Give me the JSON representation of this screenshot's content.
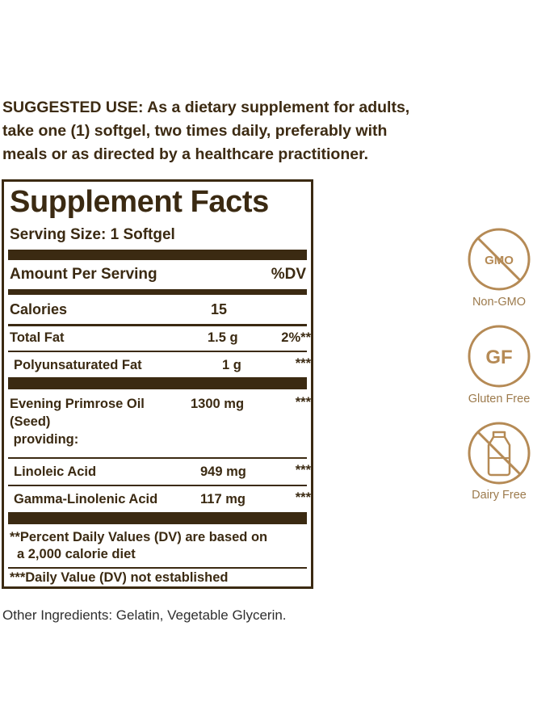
{
  "suggested_use": {
    "line1": "SUGGESTED USE: As a dietary supplement for adults,",
    "line2": "take one (1) softgel, two times daily, preferably with",
    "line3": "meals or as directed by a healthcare practitioner."
  },
  "facts": {
    "title": "Supplement Facts",
    "serving_size": "Serving Size: 1 Softgel",
    "amount_header": "Amount Per Serving",
    "dv_header": "%DV",
    "rows": [
      {
        "name": "Calories",
        "amount": "15",
        "dv": ""
      },
      {
        "name": "Total Fat",
        "amount": "1.5 g",
        "dv": "2%**"
      },
      {
        "name": "Polyunsaturated Fat",
        "amount": "1 g",
        "dv": "***"
      },
      {
        "name_lines": [
          "Evening Primrose Oil",
          "(Seed)",
          " providing:"
        ],
        "amount": "1300 mg",
        "dv": "***"
      },
      {
        "name": "Linoleic Acid",
        "amount": "949 mg",
        "dv": "***"
      },
      {
        "name": "Gamma-Linolenic Acid",
        "amount": "117 mg",
        "dv": "***"
      }
    ],
    "footnote1_line1": "**Percent Daily Values (DV) are based on",
    "footnote1_line2": "a 2,000 calorie diet",
    "footnote2": "***Daily Value (DV) not established"
  },
  "other_ingredients": "Other Ingredients: Gelatin, Vegetable Glycerin.",
  "badges": [
    {
      "icon": "gmo-crossed-icon",
      "icon_text": "GMO",
      "label": "Non-GMO"
    },
    {
      "icon": "gf-icon",
      "icon_text": "GF",
      "label": "Gluten Free"
    },
    {
      "icon": "milk-bottle-crossed-icon",
      "icon_text": "",
      "label": "Dairy Free"
    }
  ],
  "colors": {
    "text": "#3b2a12",
    "badge": "#b58a55"
  }
}
